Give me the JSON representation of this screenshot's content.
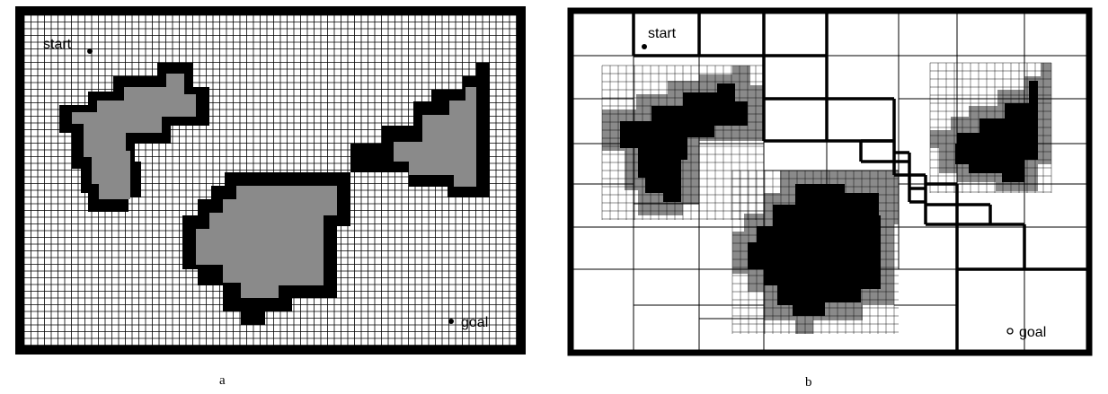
{
  "panel_a": {
    "caption": "a",
    "start_label": "start",
    "goal_label": "goal"
  },
  "panel_b": {
    "caption": "b",
    "start_label": "start",
    "goal_label": "goal"
  },
  "colors": {
    "background": "#ffffff",
    "border": "#000000",
    "grid_line": "#000000",
    "obstacle_core_a": "#8a8a8a",
    "obstacle_outline_a": "#000000",
    "obstacle_core_b": "#000000",
    "obstacle_outline_b": "#8a8a8a"
  }
}
